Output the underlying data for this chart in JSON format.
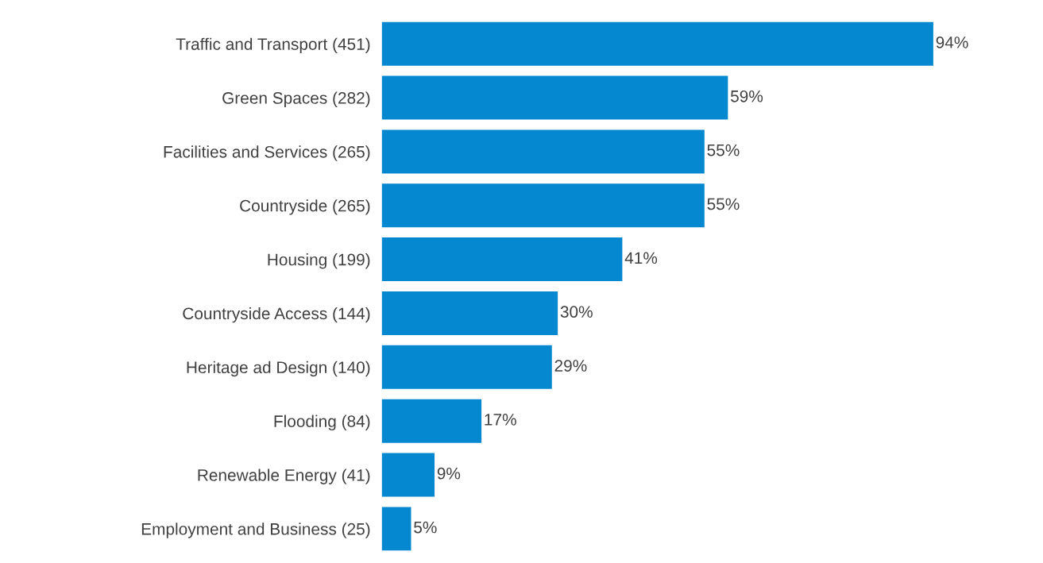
{
  "chart_data": {
    "type": "bar",
    "orientation": "horizontal",
    "categories": [
      "Traffic and Transport (451)",
      "Green Spaces (282)",
      "Facilities and Services (265)",
      "Countryside (265)",
      "Housing (199)",
      "Countryside Access (144)",
      "Heritage ad Design (140)",
      "Flooding (84)",
      "Renewable Energy (41)",
      "Employment and Business (25)"
    ],
    "values": [
      94,
      59,
      55,
      55,
      41,
      30,
      29,
      17,
      9,
      5
    ],
    "value_labels": [
      "94%",
      "59%",
      "55%",
      "55%",
      "41%",
      "30%",
      "29%",
      "17%",
      "9%",
      "5%"
    ],
    "color": "#0688d0",
    "grid": false,
    "legend": false
  }
}
